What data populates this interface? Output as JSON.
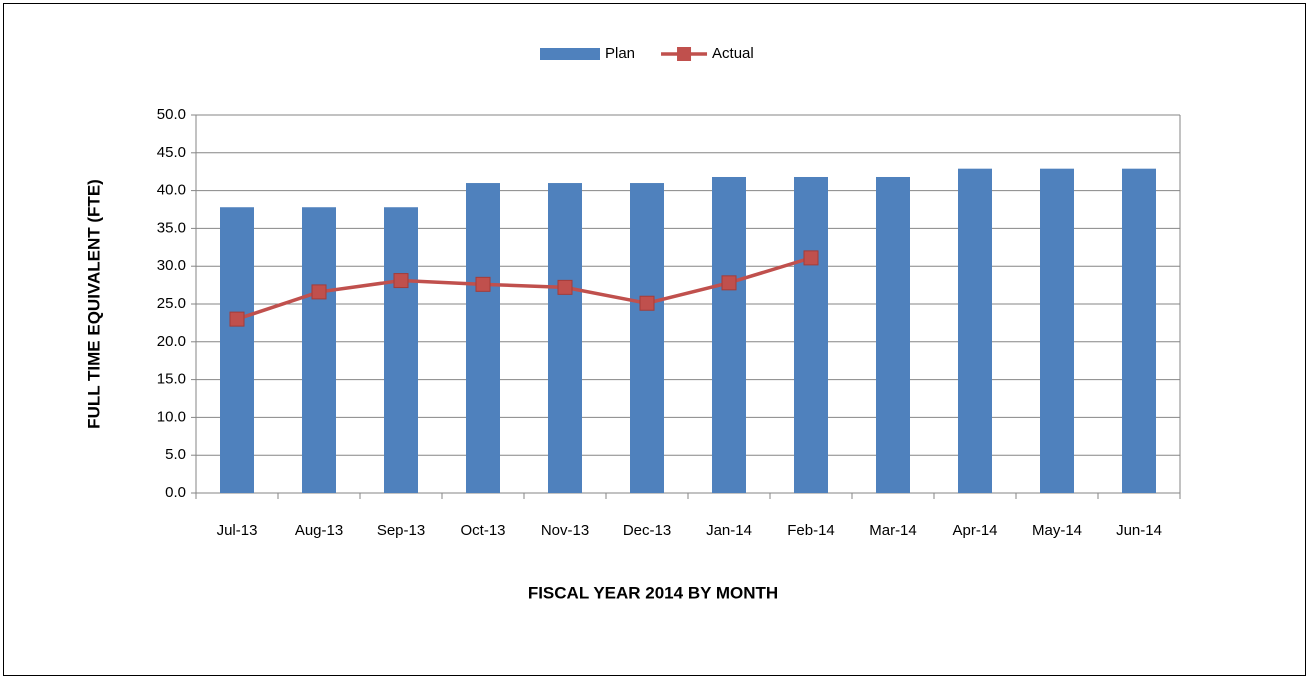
{
  "chart_data": {
    "type": "combo",
    "x_label": "FISCAL YEAR 2014 BY MONTH",
    "y_label": "FULL TIME EQUIVALENT (FTE)",
    "categories": [
      "Jul-13",
      "Aug-13",
      "Sep-13",
      "Oct-13",
      "Nov-13",
      "Dec-13",
      "Jan-14",
      "Feb-14",
      "Mar-14",
      "Apr-14",
      "May-14",
      "Jun-14"
    ],
    "series": [
      {
        "name": "Plan",
        "type": "bar",
        "color": "#4f81bd",
        "values": [
          37.8,
          37.8,
          37.8,
          41,
          41,
          41,
          41.8,
          41.8,
          41.8,
          42.9,
          42.9,
          42.9
        ]
      },
      {
        "name": "Actual",
        "type": "line",
        "color": "#c0504d",
        "values": [
          23,
          26.6,
          28.1,
          27.6,
          27.2,
          25.1,
          27.8,
          31.1,
          null,
          null,
          null,
          null
        ]
      }
    ],
    "ylim": [
      0,
      50
    ],
    "yticks": [
      {
        "value": 0,
        "label": "0.0"
      },
      {
        "value": 5,
        "label": "5.0"
      },
      {
        "value": 10,
        "label": "10.0"
      },
      {
        "value": 15,
        "label": "15.0"
      },
      {
        "value": 20,
        "label": "20.0"
      },
      {
        "value": 25,
        "label": "25.0"
      },
      {
        "value": 30,
        "label": "30.0"
      },
      {
        "value": 35,
        "label": "35.0"
      },
      {
        "value": 40,
        "label": "40.0"
      },
      {
        "value": 45,
        "label": "45.0"
      },
      {
        "value": 50,
        "label": "50.0"
      }
    ],
    "grid": true,
    "legend": "top"
  }
}
